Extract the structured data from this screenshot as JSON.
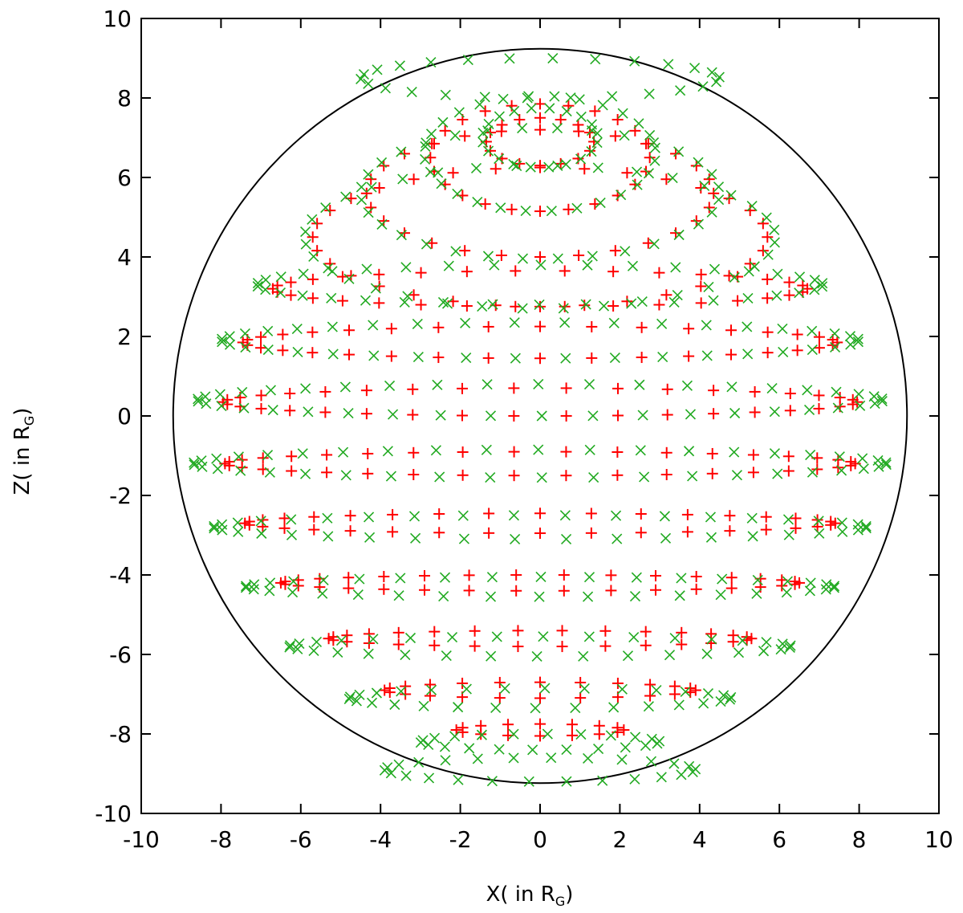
{
  "chart_data": {
    "type": "scatter",
    "title": "",
    "xlabel": "X( in R",
    "xlabel_sub": "G",
    "xlabel_close": ")",
    "ylabel": "Z( in R",
    "ylabel_sub": "G",
    "ylabel_close": ")",
    "xlim": [
      -10,
      10
    ],
    "ylim": [
      -10,
      10
    ],
    "x_ticks": [
      "-10",
      "-8",
      "-6",
      "-4",
      "-2",
      "0",
      "2",
      "4",
      "6",
      "8",
      "10"
    ],
    "y_ticks": [
      "-10",
      "-8",
      "-6",
      "-4",
      "-2",
      "0",
      "2",
      "4",
      "6",
      "8",
      "10"
    ],
    "grid": false,
    "boundary_circle": {
      "center": [
        0,
        0
      ],
      "radius": 9.2,
      "color": "#000000"
    },
    "series": [
      {
        "marker": "plus",
        "color": "#ff0000",
        "rings": [
          {
            "cx": 0,
            "cy": 6.9,
            "rx": 1.35,
            "ry": 0.6,
            "n": 16,
            "phase": 0
          },
          {
            "cx": 0,
            "cy": 6.5,
            "rx": 2.75,
            "ry": 1.35,
            "n": 24,
            "phase": 0
          },
          {
            "cx": 0,
            "cy": 5.6,
            "rx": 4.35,
            "ry": 1.6,
            "n": 28,
            "phase": 0
          },
          {
            "cx": 0,
            "cy": 4.5,
            "rx": 5.7,
            "ry": 1.75,
            "n": 32,
            "phase": 0
          },
          {
            "cx": 0,
            "cy": 3.2,
            "rx": 6.7,
            "ry": 0.45,
            "n": 34,
            "phase": 0
          },
          {
            "cx": 0,
            "cy": 1.85,
            "rx": 7.45,
            "ry": 0.4,
            "n": 36,
            "phase": 0
          },
          {
            "cx": 0,
            "cy": 0.35,
            "rx": 7.95,
            "ry": 0.35,
            "n": 38,
            "phase": 0
          },
          {
            "cx": 0,
            "cy": -1.2,
            "rx": 7.9,
            "ry": 0.3,
            "n": 38,
            "phase": 0
          },
          {
            "cx": 0,
            "cy": -2.7,
            "rx": 7.4,
            "ry": 0.25,
            "n": 36,
            "phase": 0
          },
          {
            "cx": 0,
            "cy": -4.2,
            "rx": 6.5,
            "ry": 0.2,
            "n": 34,
            "phase": 0
          },
          {
            "cx": 0,
            "cy": -5.6,
            "rx": 5.3,
            "ry": 0.2,
            "n": 30,
            "phase": 0
          },
          {
            "cx": 0,
            "cy": -6.9,
            "rx": 3.9,
            "ry": 0.2,
            "n": 24,
            "phase": 0
          },
          {
            "cx": 0,
            "cy": -7.9,
            "rx": 2.1,
            "ry": 0.15,
            "n": 16,
            "phase": 0
          }
        ]
      },
      {
        "marker": "cross",
        "color": "#22aa22",
        "rings": [
          {
            "cx": 0,
            "cy": 7.0,
            "rx": 1.45,
            "ry": 0.75,
            "n": 20,
            "phase": 0.15
          },
          {
            "cx": 0,
            "cy": 6.6,
            "rx": 2.9,
            "ry": 1.45,
            "n": 28,
            "phase": 0.1
          },
          {
            "cx": 0,
            "cy": 5.6,
            "rx": 4.5,
            "ry": 1.65,
            "n": 32,
            "phase": 0.1
          },
          {
            "cx": 0,
            "cy": 4.5,
            "rx": 5.9,
            "ry": 1.8,
            "n": 36,
            "phase": 0.1
          },
          {
            "cx": 0,
            "cy": 3.3,
            "rx": 7.1,
            "ry": 0.5,
            "n": 38,
            "phase": 0.08
          },
          {
            "cx": 0,
            "cy": 1.9,
            "rx": 8.0,
            "ry": 0.45,
            "n": 40,
            "phase": 0.08
          },
          {
            "cx": 0,
            "cy": 0.4,
            "rx": 8.6,
            "ry": 0.4,
            "n": 42,
            "phase": 0.08
          },
          {
            "cx": 0,
            "cy": -1.2,
            "rx": 8.7,
            "ry": 0.35,
            "n": 42,
            "phase": 0.08
          },
          {
            "cx": 0,
            "cy": -2.8,
            "rx": 8.2,
            "ry": 0.3,
            "n": 40,
            "phase": 0.08
          },
          {
            "cx": 0,
            "cy": -4.3,
            "rx": 7.4,
            "ry": 0.25,
            "n": 38,
            "phase": 0.08
          },
          {
            "cx": 0,
            "cy": -5.8,
            "rx": 6.3,
            "ry": 0.25,
            "n": 34,
            "phase": 0.08
          },
          {
            "cx": 0,
            "cy": -7.1,
            "rx": 4.8,
            "ry": 0.25,
            "n": 30,
            "phase": 0.08
          },
          {
            "cx": 0,
            "cy": -8.2,
            "rx": 3.0,
            "ry": 0.2,
            "n": 22,
            "phase": 0.08
          },
          {
            "cx": 0,
            "cy": 8.5,
            "rx": 4.5,
            "ry": 0.5,
            "n": 26,
            "phase": 0.05
          },
          {
            "cx": 0,
            "cy": -8.9,
            "rx": 3.9,
            "ry": 0.3,
            "n": 26,
            "phase": 0.05
          }
        ]
      }
    ]
  }
}
